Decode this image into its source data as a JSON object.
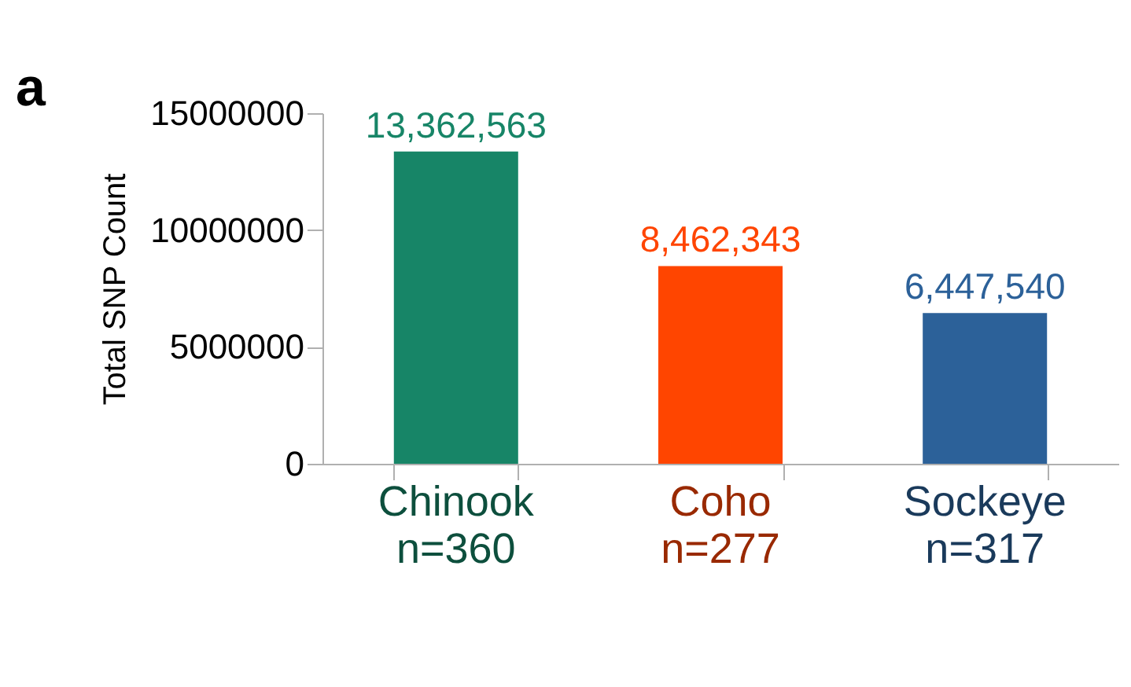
{
  "chart_data": {
    "type": "bar",
    "ylabel": "Total SNP Count",
    "categories": [
      "Chinook\nn=360",
      "Coho\nn=277",
      "Sockeye\nn=317"
    ],
    "values": [
      13362563,
      8462343,
      6447540
    ],
    "colors": [
      "#178567",
      "#ff4500",
      "#2c6199"
    ],
    "value_labels": [
      "13,362,563",
      "8,462,343",
      "6,447,540"
    ],
    "ylim": [
      0,
      15000000
    ],
    "yticks": [
      0,
      5000000,
      10000000,
      15000000
    ],
    "grid": false,
    "annotations": [
      "a"
    ]
  }
}
